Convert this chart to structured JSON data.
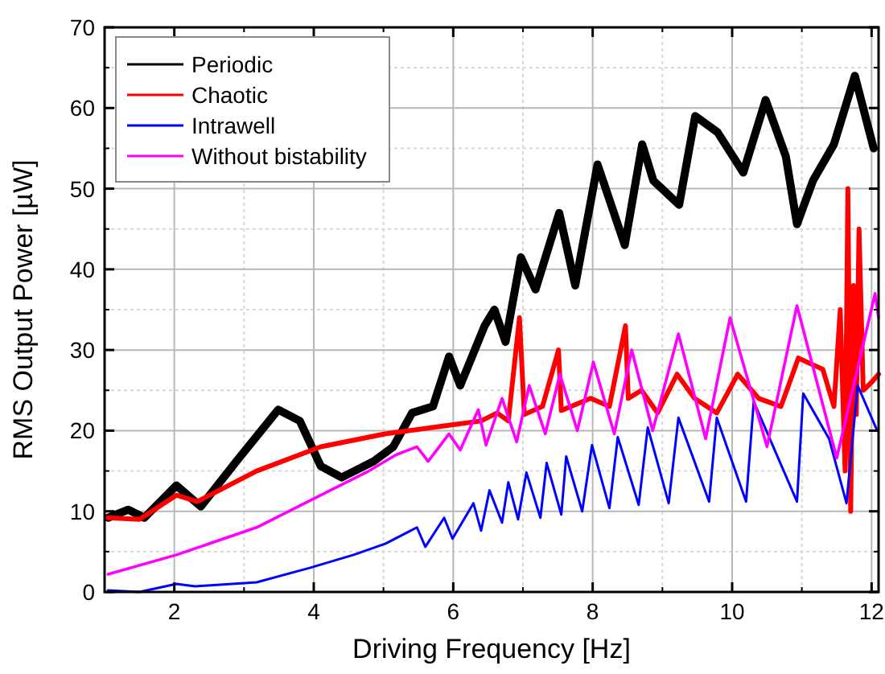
{
  "chart_data": {
    "type": "line",
    "xlabel": "Driving Frequency [Hz]",
    "ylabel": "RMS Output Power [µW]",
    "xlim": [
      1,
      12.1
    ],
    "ylim": [
      0,
      70
    ],
    "xticks": [
      2,
      4,
      6,
      8,
      10,
      12
    ],
    "yticks": [
      0,
      10,
      20,
      30,
      40,
      50,
      60,
      70
    ],
    "grid": true,
    "legend": "top left",
    "line_style": "solid",
    "series": [
      {
        "name": "Periodic",
        "color": "#000000",
        "x": [
          1.05,
          1.34,
          1.57,
          2.03,
          2.38,
          2.89,
          3.49,
          3.8,
          4.1,
          4.4,
          4.86,
          5.14,
          5.41,
          5.71,
          5.94,
          6.1,
          6.45,
          6.59,
          6.75,
          6.97,
          7.18,
          7.52,
          7.75,
          8.07,
          8.46,
          8.71,
          8.87,
          9.24,
          9.47,
          9.79,
          10.16,
          10.48,
          10.77,
          10.93,
          11.16,
          11.46,
          11.76,
          12.03
        ],
        "values": [
          9.2,
          10.2,
          9.2,
          13.2,
          10.6,
          16.2,
          22.6,
          21.2,
          15.6,
          14.2,
          16.2,
          18,
          22.2,
          23,
          29.2,
          25.6,
          33,
          35,
          31,
          41.5,
          37.5,
          47,
          38,
          53,
          43,
          55.5,
          51,
          48,
          59,
          57,
          52,
          61,
          54,
          45.6,
          51,
          55.5,
          64,
          55
        ]
      },
      {
        "name": "Chaotic",
        "color": "#ff0000",
        "x": [
          1.05,
          1.5,
          2.03,
          2.33,
          3.18,
          4.1,
          5.02,
          5.87,
          6.4,
          6.63,
          6.79,
          6.95,
          7.02,
          7.28,
          7.51,
          7.55,
          7.97,
          8.24,
          8.47,
          8.51,
          8.7,
          8.93,
          9.21,
          9.46,
          9.78,
          10.08,
          10.38,
          10.7,
          10.95,
          11.3,
          11.46,
          11.55,
          11.62,
          11.66,
          11.7,
          11.74,
          11.78,
          11.82,
          11.88,
          12.0,
          12.1
        ],
        "values": [
          9.2,
          9,
          12,
          11.2,
          15,
          18,
          19.6,
          20.6,
          21.2,
          22.2,
          21.2,
          34,
          22,
          23,
          30,
          22.5,
          24,
          23,
          33,
          24,
          25,
          22.2,
          27,
          24,
          22.2,
          27,
          24,
          23,
          29,
          27.6,
          23,
          35,
          15,
          50,
          10,
          38,
          22,
          45,
          25,
          26,
          27
        ]
      },
      {
        "name": "Intrawell",
        "color": "#0000ff",
        "x": [
          1.05,
          1.5,
          2.03,
          2.3,
          3.18,
          3.95,
          4.57,
          5.03,
          5.48,
          5.6,
          5.87,
          5.99,
          6.29,
          6.4,
          6.52,
          6.7,
          6.79,
          6.93,
          7.05,
          7.25,
          7.34,
          7.55,
          7.62,
          7.85,
          7.99,
          8.24,
          8.36,
          8.66,
          8.79,
          9.09,
          9.23,
          9.67,
          9.78,
          10.2,
          10.31,
          10.93,
          11.02,
          11.39,
          11.64,
          11.8,
          12.08
        ],
        "values": [
          0.2,
          0,
          1,
          0.7,
          1.2,
          3,
          4.6,
          6,
          8,
          5.6,
          9.2,
          6.6,
          11,
          7.6,
          12.6,
          8.6,
          13.6,
          9,
          14.8,
          9.2,
          16,
          9.6,
          16.8,
          10,
          18.2,
          10.4,
          19.2,
          10.8,
          20.4,
          11,
          21.6,
          11.2,
          21.6,
          11.2,
          23.6,
          11.2,
          24.6,
          19,
          11,
          25.6,
          20
        ]
      },
      {
        "name": "Without bistability",
        "color": "#ff00ff",
        "x": [
          1.05,
          2.03,
          3.18,
          4.1,
          4.79,
          5.18,
          5.48,
          5.64,
          5.94,
          6.1,
          6.36,
          6.47,
          6.7,
          6.91,
          7.09,
          7.32,
          7.53,
          7.78,
          8.01,
          8.31,
          8.56,
          8.86,
          9.23,
          9.62,
          9.97,
          10.5,
          10.93,
          11.5,
          12.05,
          12.1
        ],
        "values": [
          2.2,
          4.6,
          8,
          12,
          15,
          17,
          18,
          16.2,
          19.6,
          17.6,
          22.6,
          18.2,
          24,
          18.6,
          25.6,
          19.6,
          27,
          20,
          28.5,
          19.6,
          30,
          20,
          32,
          19,
          34,
          18,
          35.5,
          16.6,
          37,
          34
        ]
      }
    ]
  }
}
